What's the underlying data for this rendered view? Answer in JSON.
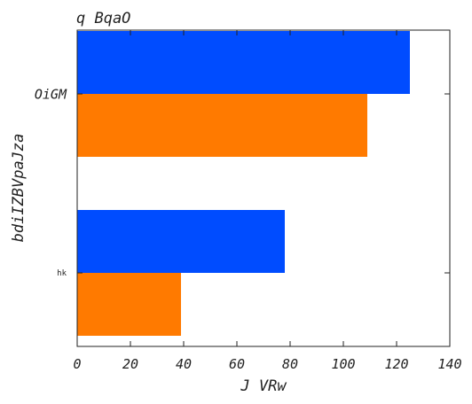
{
  "chart_data": {
    "type": "bar",
    "orientation": "horizontal",
    "title": "q BqaO",
    "xlabel": "J VRw",
    "ylabel": "bdiIZBVpaJza",
    "categories": [
      "OiGM",
      "hk"
    ],
    "series": [
      {
        "values": [
          125,
          78
        ],
        "color": "#004cff"
      },
      {
        "values": [
          109,
          39
        ],
        "color": "#ff7a00"
      }
    ],
    "xlim": [
      0,
      140
    ],
    "xticks": [
      "0",
      "20",
      "40",
      "60",
      "80",
      "100",
      "120",
      "140"
    ],
    "grid": false,
    "legend": "none"
  }
}
